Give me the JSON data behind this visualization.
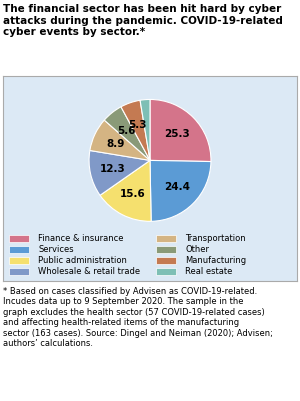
{
  "title": "The financial sector has been hit hard by cyber\nattacks during the pandemic. COVID-19-related\ncyber events by sector.*",
  "footnote": "* Based on cases classified by Advisen as COVID-19-related.\nIncudes data up to 9 September 2020. The sample in the\ngraph excludes the health sector (57 COVID-19-related cases)\nand affecting health-related items of the manufacturing\nsector (163 cases). Source: Dingel and Neiman (2020); Advisen;\nauthors’ calculations.",
  "labels": [
    "Finance & insurance",
    "Services",
    "Public administration",
    "Wholesale & retail trade",
    "Transportation",
    "Other",
    "Manufacturing",
    "Real estate"
  ],
  "values": [
    25.3,
    24.4,
    15.6,
    12.3,
    8.9,
    5.6,
    5.3,
    2.6
  ],
  "colors": [
    "#d4748a",
    "#5b9bd5",
    "#f5e06e",
    "#8099c8",
    "#d4b483",
    "#8a9a78",
    "#c47a52",
    "#7ebfb5"
  ],
  "legend_labels_left": [
    "Finance & insurance",
    "Services",
    "Public administration",
    "Wholesale & retail trade"
  ],
  "legend_labels_right": [
    "Transportation",
    "Other",
    "Manufacturing",
    "Real estate"
  ],
  "legend_colors_left": [
    "#d4748a",
    "#5b9bd5",
    "#f5e06e",
    "#8099c8"
  ],
  "legend_colors_right": [
    "#d4b483",
    "#8a9a78",
    "#c47a52",
    "#7ebfb5"
  ],
  "background_color": "#dce9f5",
  "startangle": 90
}
